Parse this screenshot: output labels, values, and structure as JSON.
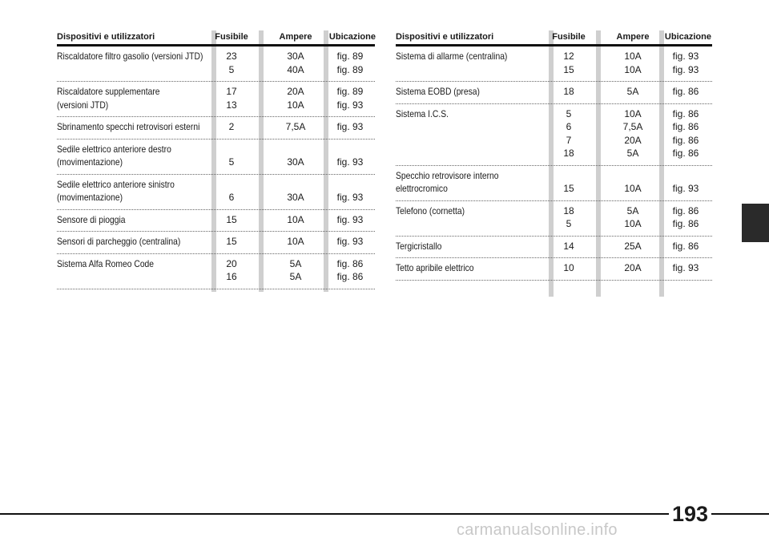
{
  "headers": {
    "device": "Dispositivi e utilizzatori",
    "fuse": "Fusibile",
    "amps": "Ampere",
    "location": "Ubicazione"
  },
  "left_rows": [
    {
      "device": [
        "Riscaldatore filtro gasolio (versioni JTD)"
      ],
      "fuse": [
        "23",
        "5"
      ],
      "amps": [
        "30A",
        "40A"
      ],
      "loc": [
        "fig. 89",
        "fig. 89"
      ]
    },
    {
      "device": [
        "Riscaldatore supplementare",
        "(versioni JTD)"
      ],
      "fuse": [
        "17",
        "13"
      ],
      "amps": [
        "20A",
        "10A"
      ],
      "loc": [
        "fig. 89",
        "fig. 93"
      ]
    },
    {
      "device": [
        "Sbrinamento specchi retrovisori esterni"
      ],
      "fuse": [
        "2"
      ],
      "amps": [
        "7,5A"
      ],
      "loc": [
        "fig. 93"
      ]
    },
    {
      "device": [
        "Sedile elettrico anteriore destro",
        "(movimentazione)"
      ],
      "fuse": [
        "",
        "5"
      ],
      "amps": [
        "",
        "30A"
      ],
      "loc": [
        "",
        "fig. 93"
      ]
    },
    {
      "device": [
        "Sedile elettrico anteriore sinistro",
        "(movimentazione)"
      ],
      "fuse": [
        "",
        "6"
      ],
      "amps": [
        "",
        "30A"
      ],
      "loc": [
        "",
        "fig. 93"
      ]
    },
    {
      "device": [
        "Sensore di pioggia"
      ],
      "fuse": [
        "15"
      ],
      "amps": [
        "10A"
      ],
      "loc": [
        "fig. 93"
      ]
    },
    {
      "device": [
        "Sensori di parcheggio (centralina)"
      ],
      "fuse": [
        "15"
      ],
      "amps": [
        "10A"
      ],
      "loc": [
        "fig. 93"
      ]
    },
    {
      "device": [
        "Sistema Alfa Romeo Code"
      ],
      "fuse": [
        "20",
        "16"
      ],
      "amps": [
        "5A",
        "5A"
      ],
      "loc": [
        "fig. 86",
        "fig. 86"
      ]
    }
  ],
  "right_rows": [
    {
      "device": [
        "Sistema di allarme (centralina)"
      ],
      "fuse": [
        "12",
        "15"
      ],
      "amps": [
        "10A",
        "10A"
      ],
      "loc": [
        "fig. 93",
        "fig. 93"
      ]
    },
    {
      "device": [
        "Sistema EOBD (presa)"
      ],
      "fuse": [
        "18"
      ],
      "amps": [
        "5A"
      ],
      "loc": [
        "fig. 86"
      ]
    },
    {
      "device": [
        "Sistema I.C.S."
      ],
      "fuse": [
        "5",
        "6",
        "7",
        "18"
      ],
      "amps": [
        "10A",
        "7,5A",
        "20A",
        "5A"
      ],
      "loc": [
        "fig. 86",
        "fig. 86",
        "fig. 86",
        "fig. 86"
      ]
    },
    {
      "device": [
        "Specchio retrovisore interno",
        "elettrocromico"
      ],
      "fuse": [
        "",
        "15"
      ],
      "amps": [
        "",
        "10A"
      ],
      "loc": [
        "",
        "fig. 93"
      ]
    },
    {
      "device": [
        "Telefono (cornetta)"
      ],
      "fuse": [
        "18",
        "5"
      ],
      "amps": [
        "5A",
        "10A"
      ],
      "loc": [
        "fig. 86",
        "fig. 86"
      ]
    },
    {
      "device": [
        "Tergicristallo"
      ],
      "fuse": [
        "14"
      ],
      "amps": [
        "25A"
      ],
      "loc": [
        "fig. 86"
      ]
    },
    {
      "device": [
        "Tetto apribile elettrico"
      ],
      "fuse": [
        "10"
      ],
      "amps": [
        "20A"
      ],
      "loc": [
        "fig. 93"
      ]
    }
  ],
  "page_number": "193",
  "watermark": "carmanualsonline.info",
  "colors": {
    "text": "#1a1a1a",
    "column_bar": "#cfcfcf",
    "rule": "#111111",
    "tab_marker": "#2a2a2a"
  }
}
